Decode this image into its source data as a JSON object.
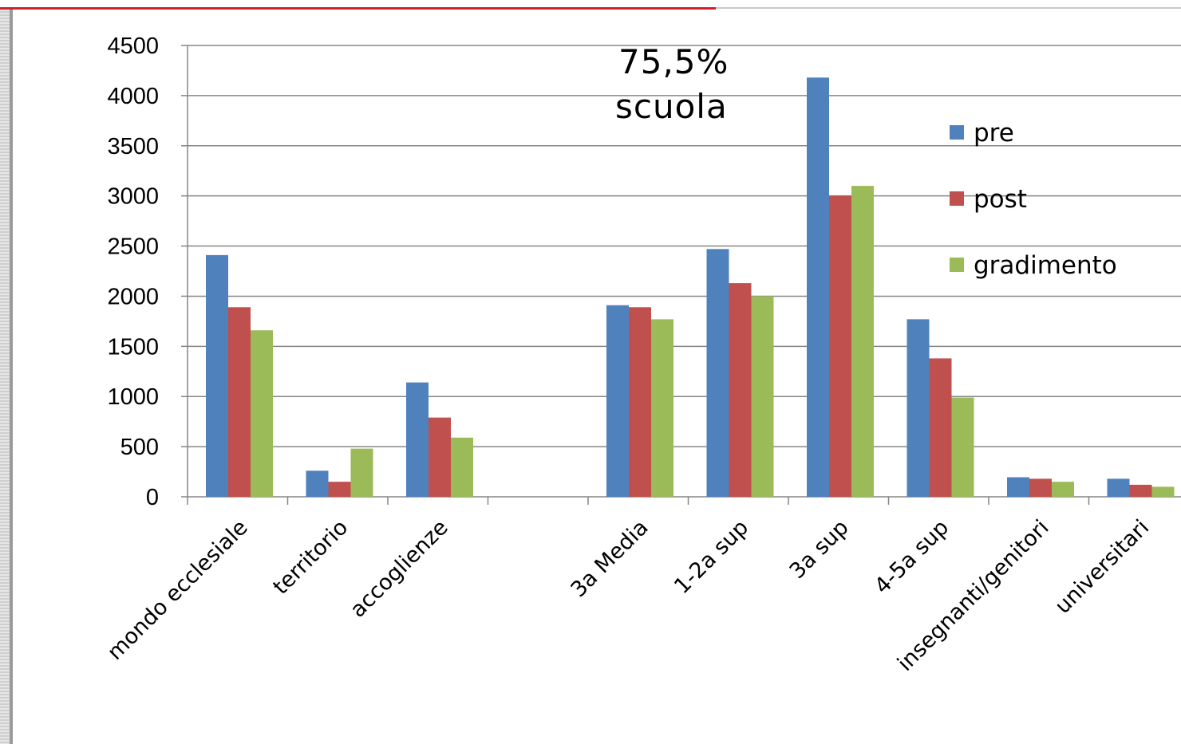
{
  "chart_data": {
    "type": "bar",
    "categories": [
      "mondo ecclesiale",
      "territorio",
      "accoglienze",
      "",
      "3a Media",
      "1-2a sup",
      "3a sup",
      "4-5a sup",
      "insegnanti/genitori",
      "universitari"
    ],
    "series": [
      {
        "name": "pre",
        "color": "#4f81bd",
        "values": [
          2410,
          260,
          1140,
          null,
          1910,
          2470,
          4180,
          1770,
          195,
          180
        ]
      },
      {
        "name": "post",
        "color": "#c0504d",
        "values": [
          1890,
          150,
          790,
          null,
          1890,
          2130,
          3000,
          1380,
          180,
          120
        ]
      },
      {
        "name": "gradimento",
        "color": "#9bbb59",
        "values": [
          1660,
          480,
          590,
          null,
          1770,
          2000,
          3100,
          990,
          150,
          100
        ]
      }
    ],
    "yticks": [
      0,
      500,
      1000,
      1500,
      2000,
      2500,
      3000,
      3500,
      4000,
      4500
    ],
    "ylim": [
      0,
      4500
    ],
    "grid": true,
    "legend_position": "right",
    "annotation": {
      "line1": "75,5%",
      "line2": "scuola"
    }
  }
}
